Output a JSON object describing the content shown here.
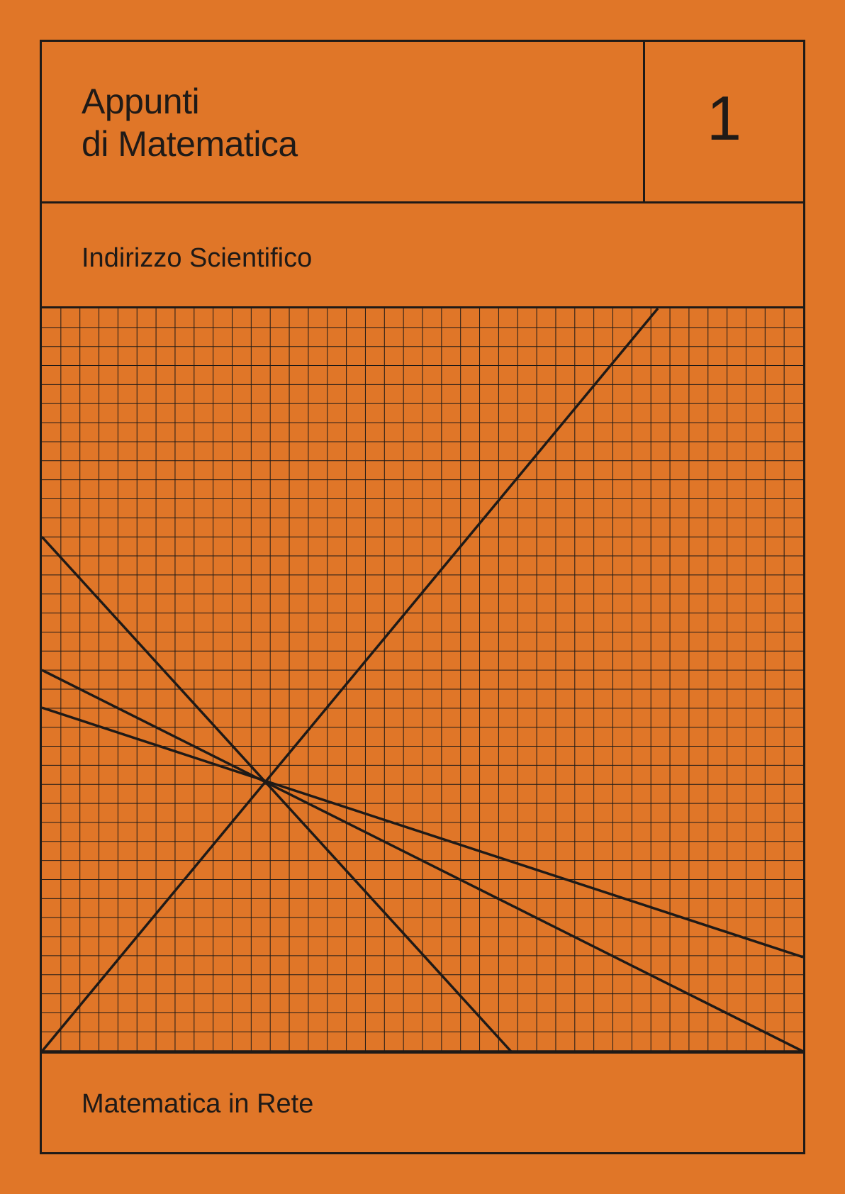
{
  "cover": {
    "background_color": "#e07628",
    "ink_color": "#1f1a17",
    "title_line1": "Appunti",
    "title_line2": "di Matematica",
    "volume_number": "1",
    "subtitle": "Indirizzo Scientifico",
    "publisher": "Matematica in Rete"
  }
}
